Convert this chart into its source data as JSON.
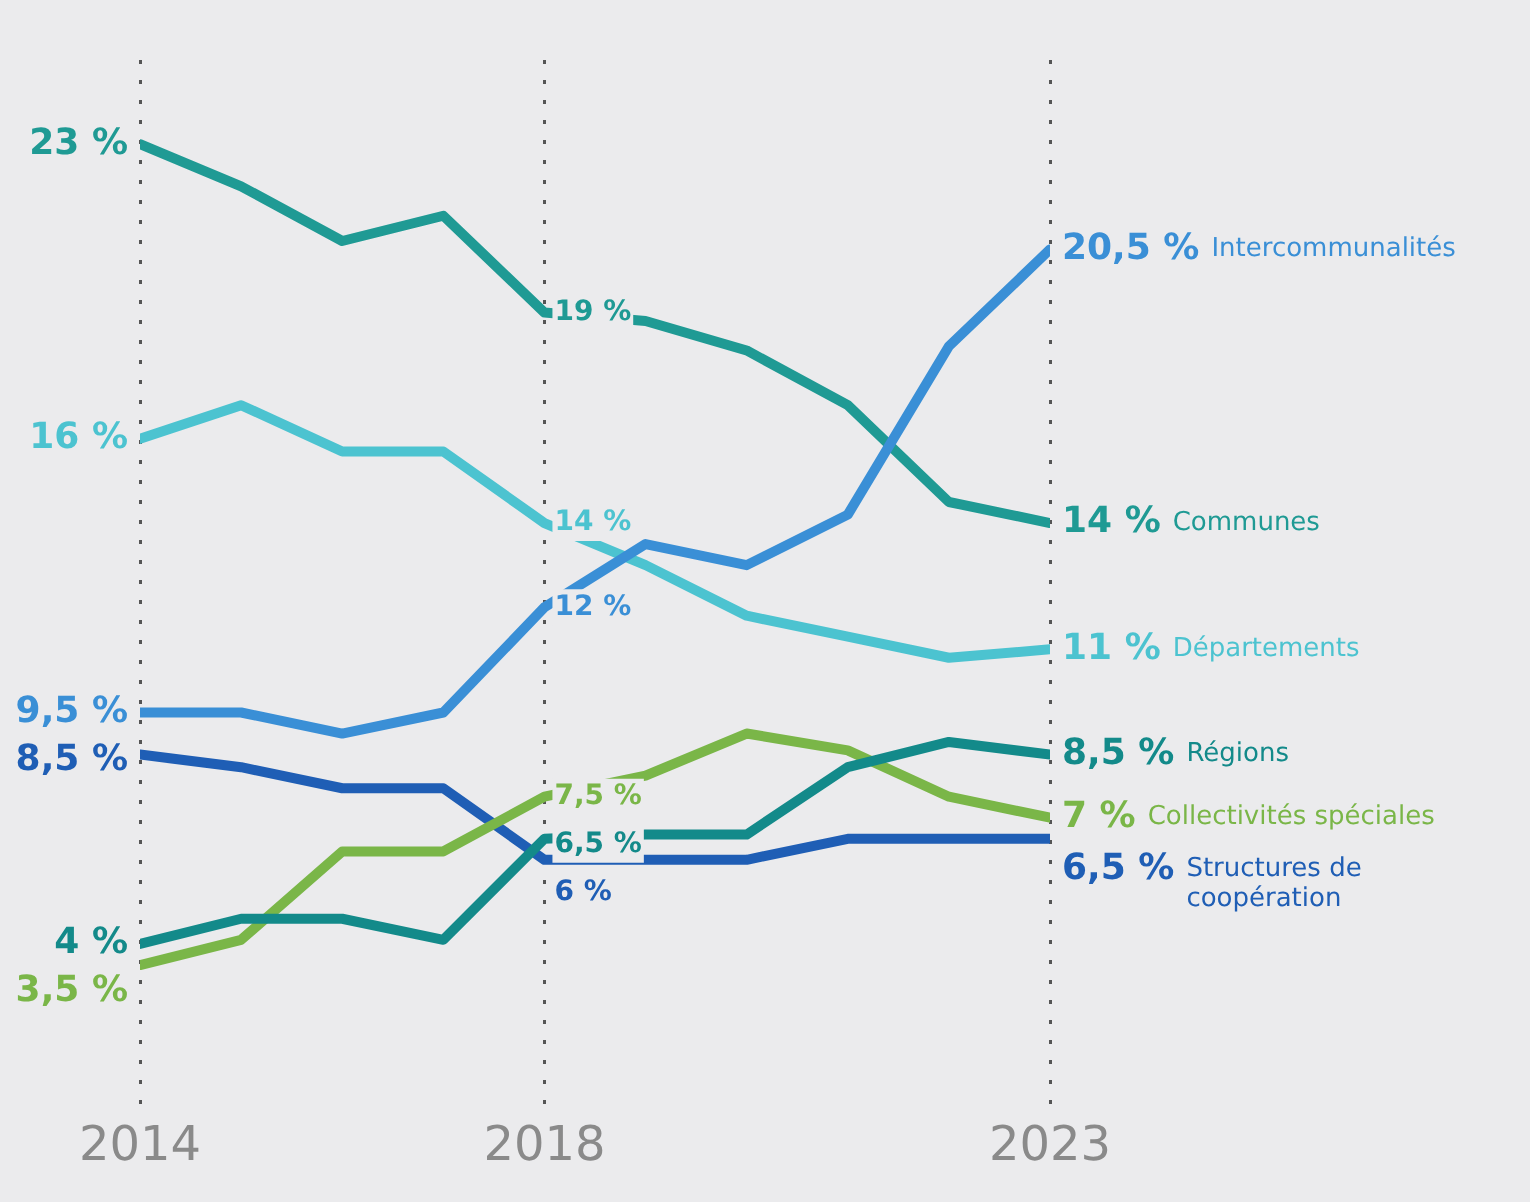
{
  "chart_data": {
    "type": "line",
    "x": [
      2014,
      2015,
      2016,
      2017,
      2018,
      2019,
      2020,
      2021,
      2022,
      2023
    ],
    "xlim": [
      2014,
      2023
    ],
    "xticks": [
      2014,
      2018,
      2023
    ],
    "grid": "x",
    "legend": false,
    "marker": "none",
    "series": [
      {
        "name": "Intercommunalités",
        "color": "#3a8fd6",
        "values": [
          9.5,
          9.5,
          9,
          9.5,
          12,
          13.5,
          13,
          14.2,
          18.2,
          20.5
        ],
        "value_labels": [
          "9,5 %",
          null,
          null,
          null,
          "12 %",
          null,
          null,
          null,
          null,
          "20,5 %"
        ]
      },
      {
        "name": "Communes",
        "color": "#1f9a94",
        "values": [
          23,
          22,
          20.7,
          21.3,
          19,
          18.8,
          18.1,
          16.8,
          14.5,
          14
        ],
        "value_labels": [
          "23 %",
          null,
          null,
          null,
          "19 %",
          null,
          null,
          null,
          null,
          "14 %"
        ]
      },
      {
        "name": "Départements",
        "color": "#4cc3d0",
        "values": [
          16,
          16.8,
          15.7,
          15.7,
          14,
          13,
          11.8,
          11.3,
          10.8,
          11
        ],
        "value_labels": [
          "16 %",
          null,
          null,
          null,
          "14 %",
          null,
          null,
          null,
          null,
          "11 %"
        ]
      },
      {
        "name": "Régions",
        "color": "#138a8a",
        "values": [
          4,
          4.6,
          4.6,
          4.1,
          6.5,
          6.6,
          6.6,
          8.2,
          8.8,
          8.5
        ],
        "value_labels": [
          "4 %",
          null,
          null,
          null,
          "6,5 %",
          null,
          null,
          null,
          null,
          "8,5 %"
        ]
      },
      {
        "name": "Collectivités spéciales",
        "color": "#7ab648",
        "values": [
          3.5,
          4.1,
          6.2,
          6.2,
          7.5,
          8,
          9,
          8.6,
          7.5,
          7
        ],
        "value_labels": [
          "3,5 %",
          null,
          null,
          null,
          "7,5 %",
          null,
          null,
          null,
          null,
          "7 %"
        ]
      },
      {
        "name": "Structures de coopération",
        "color": "#1f5eb5",
        "values": [
          8.5,
          8.2,
          7.7,
          7.7,
          6,
          6,
          6,
          6.5,
          6.5,
          6.5
        ],
        "value_labels": [
          "8,5 %",
          null,
          null,
          null,
          "6 %",
          null,
          null,
          null,
          null,
          "6,5 %"
        ]
      }
    ]
  }
}
